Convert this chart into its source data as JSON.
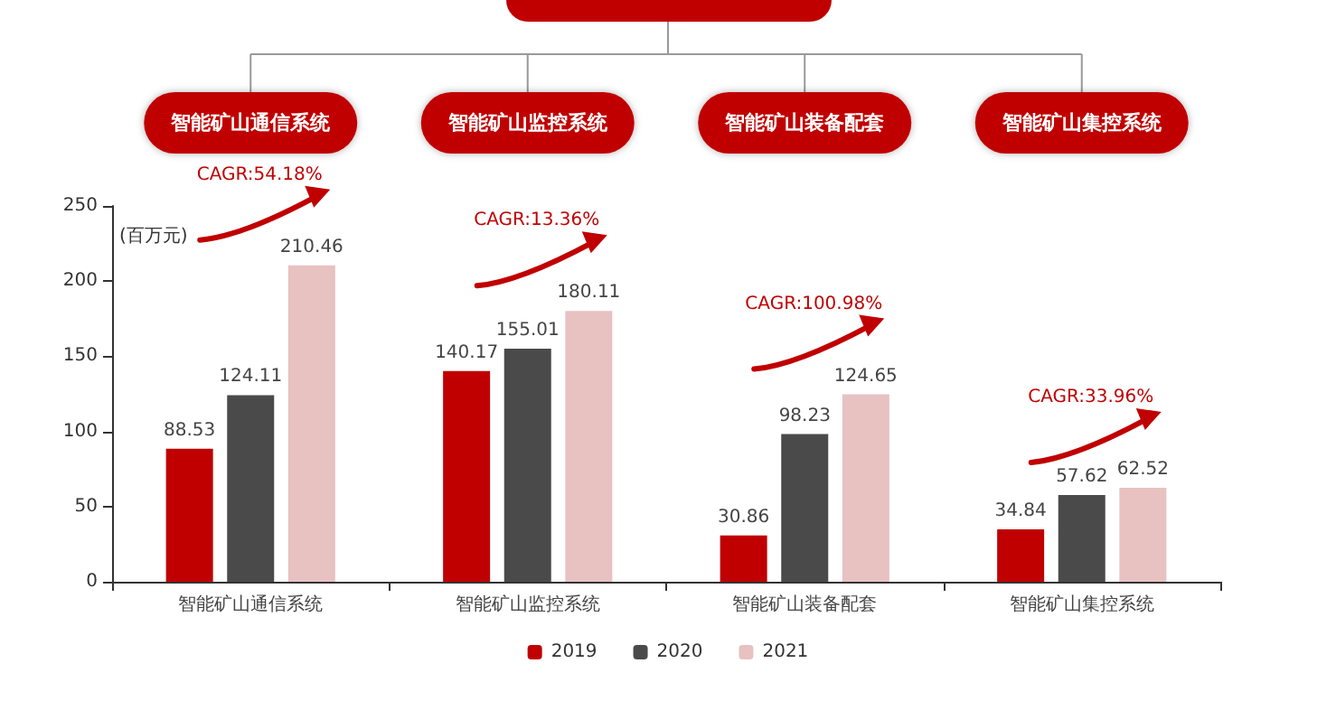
{
  "chart_data": {
    "type": "bar",
    "ylabel": "(百万元)",
    "categories": [
      "智能矿山通信系统",
      "智能矿山监控系统",
      "智能矿山装备配套",
      "智能矿山集控系统"
    ],
    "series": [
      {
        "name": "2019",
        "color": "#c00000",
        "values": [
          88.53,
          140.17,
          30.86,
          34.84
        ]
      },
      {
        "name": "2020",
        "color": "#4a4a4a",
        "values": [
          124.11,
          155.01,
          98.23,
          57.62
        ]
      },
      {
        "name": "2021",
        "color": "#e8c1c1",
        "values": [
          210.46,
          180.11,
          124.65,
          62.52
        ]
      }
    ],
    "ylim": [
      0,
      250
    ],
    "yticks": [
      0,
      50,
      100,
      150,
      200,
      250
    ],
    "grid": false,
    "legend": "bottom",
    "data_labels": true,
    "annotations": [
      "智能矿山通信系统",
      "CAGR:54.18%",
      "智能矿山监控系统",
      "CAGR:13.36%",
      "智能矿山装备配套",
      "CAGR:100.98%",
      "智能矿山集控系统",
      "CAGR:33.96%"
    ]
  }
}
